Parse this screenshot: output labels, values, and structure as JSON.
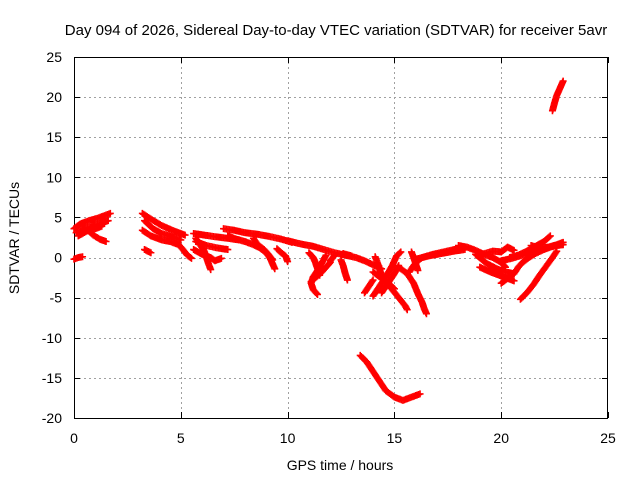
{
  "chart_data": {
    "type": "scatter",
    "title": "Day 094 of 2026, Sidereal Day-to-day VTEC variation (SDTVAR) for receiver 5avr",
    "xlabel": "GPS time / hours",
    "ylabel": "SDTVAR / TECUs",
    "xlim": [
      0,
      25
    ],
    "ylim": [
      -20,
      25
    ],
    "x_ticks": [
      0,
      5,
      10,
      15,
      20,
      25
    ],
    "y_ticks": [
      -20,
      -15,
      -10,
      -5,
      0,
      5,
      10,
      15,
      20,
      25
    ],
    "grid": true,
    "marker": "+",
    "color": "#ff0000",
    "series": [
      {
        "name": "t1",
        "points": [
          [
            0.0,
            3.6
          ],
          [
            0.3,
            4.2
          ],
          [
            0.7,
            4.6
          ],
          [
            1.1,
            4.9
          ],
          [
            1.5,
            5.3
          ],
          [
            1.7,
            5.5
          ]
        ]
      },
      {
        "name": "t2",
        "points": [
          [
            0.1,
            3.1
          ],
          [
            0.5,
            3.6
          ],
          [
            0.9,
            3.9
          ],
          [
            1.3,
            4.3
          ],
          [
            1.6,
            4.6
          ]
        ]
      },
      {
        "name": "t3",
        "points": [
          [
            0.2,
            2.7
          ],
          [
            0.6,
            3.3
          ],
          [
            1.0,
            3.6
          ],
          [
            1.3,
            3.9
          ]
        ]
      },
      {
        "name": "t4",
        "points": [
          [
            0.7,
            3.3
          ],
          [
            0.9,
            2.8
          ],
          [
            1.2,
            2.3
          ],
          [
            1.5,
            2.0
          ]
        ]
      },
      {
        "name": "t5",
        "points": [
          [
            0.0,
            -0.2
          ],
          [
            0.2,
            0.0
          ],
          [
            0.4,
            0.1
          ]
        ]
      },
      {
        "name": "t6",
        "points": [
          [
            3.2,
            5.5
          ],
          [
            3.6,
            4.8
          ],
          [
            4.1,
            4.0
          ],
          [
            4.7,
            3.3
          ],
          [
            5.2,
            2.8
          ]
        ]
      },
      {
        "name": "t7",
        "points": [
          [
            3.3,
            4.6
          ],
          [
            3.7,
            3.6
          ],
          [
            4.1,
            3.0
          ],
          [
            4.6,
            2.6
          ],
          [
            5.0,
            2.2
          ]
        ]
      },
      {
        "name": "t8",
        "points": [
          [
            3.2,
            3.4
          ],
          [
            3.6,
            2.7
          ],
          [
            4.1,
            2.2
          ],
          [
            4.5,
            2.0
          ],
          [
            4.9,
            1.6
          ],
          [
            5.1,
            1.0
          ],
          [
            5.3,
            0.3
          ],
          [
            5.5,
            -0.1
          ]
        ]
      },
      {
        "name": "t9",
        "points": [
          [
            3.3,
            1.0
          ],
          [
            3.6,
            0.6
          ]
        ]
      },
      {
        "name": "t10",
        "points": [
          [
            5.6,
            3.0
          ],
          [
            6.1,
            2.8
          ],
          [
            6.6,
            2.6
          ],
          [
            7.2,
            2.4
          ],
          [
            7.7,
            2.2
          ]
        ]
      },
      {
        "name": "t11",
        "points": [
          [
            5.7,
            2.0
          ],
          [
            6.2,
            1.5
          ],
          [
            6.7,
            1.2
          ],
          [
            7.2,
            1.0
          ]
        ]
      },
      {
        "name": "t12",
        "points": [
          [
            5.6,
            1.0
          ],
          [
            6.0,
            0.4
          ],
          [
            6.4,
            0.0
          ],
          [
            6.6,
            -0.4
          ],
          [
            6.9,
            -0.1
          ]
        ]
      },
      {
        "name": "t13",
        "points": [
          [
            5.7,
            2.4
          ],
          [
            5.9,
            1.6
          ],
          [
            6.1,
            0.8
          ],
          [
            6.2,
            0.0
          ],
          [
            6.3,
            -0.8
          ],
          [
            6.4,
            -1.5
          ]
        ]
      },
      {
        "name": "t14",
        "points": [
          [
            7.0,
            3.6
          ],
          [
            7.5,
            3.4
          ],
          [
            8.0,
            3.1
          ],
          [
            8.6,
            2.9
          ],
          [
            9.2,
            2.6
          ],
          [
            9.7,
            2.3
          ],
          [
            10.2,
            1.9
          ]
        ]
      },
      {
        "name": "t15",
        "points": [
          [
            7.2,
            2.7
          ],
          [
            7.6,
            2.3
          ],
          [
            8.0,
            2.0
          ],
          [
            8.4,
            1.6
          ],
          [
            8.7,
            1.2
          ],
          [
            9.0,
            0.6
          ],
          [
            9.2,
            -0.2
          ],
          [
            9.3,
            -0.8
          ],
          [
            9.4,
            -1.4
          ]
        ]
      },
      {
        "name": "t16",
        "points": [
          [
            8.4,
            2.4
          ],
          [
            8.6,
            1.6
          ],
          [
            8.9,
            1.0
          ],
          [
            9.1,
            0.4
          ],
          [
            9.3,
            -0.3
          ]
        ]
      },
      {
        "name": "t17",
        "points": [
          [
            9.5,
            1.1
          ],
          [
            9.7,
            0.6
          ],
          [
            9.9,
            0.2
          ],
          [
            10.0,
            -0.5
          ]
        ]
      },
      {
        "name": "t18",
        "points": [
          [
            10.0,
            2.1
          ],
          [
            10.6,
            1.7
          ],
          [
            11.2,
            1.4
          ],
          [
            11.7,
            1.0
          ],
          [
            12.2,
            0.6
          ],
          [
            12.7,
            0.3
          ],
          [
            13.2,
            0.0
          ],
          [
            13.6,
            -0.4
          ],
          [
            14.0,
            -0.9
          ],
          [
            14.4,
            -1.4
          ]
        ]
      },
      {
        "name": "t19",
        "points": [
          [
            11.0,
            0.6
          ],
          [
            11.2,
            0.0
          ],
          [
            11.3,
            -0.6
          ],
          [
            11.4,
            -1.4
          ],
          [
            11.5,
            -2.2
          ]
        ]
      },
      {
        "name": "t20",
        "points": [
          [
            11.1,
            -3.0
          ],
          [
            11.4,
            -2.3
          ],
          [
            11.6,
            -1.8
          ],
          [
            11.8,
            -1.2
          ],
          [
            12.0,
            -0.6
          ]
        ]
      },
      {
        "name": "t21",
        "points": [
          [
            11.8,
            0.3
          ],
          [
            11.5,
            -1.2
          ],
          [
            11.2,
            -2.4
          ],
          [
            11.1,
            -3.2
          ],
          [
            11.2,
            -4.0
          ],
          [
            11.4,
            -4.6
          ]
        ]
      },
      {
        "name": "t22",
        "points": [
          [
            12.2,
            0.3
          ],
          [
            12.0,
            -0.4
          ]
        ]
      },
      {
        "name": "t23",
        "points": [
          [
            12.5,
            -0.3
          ],
          [
            12.6,
            -1.0
          ],
          [
            12.7,
            -2.0
          ],
          [
            12.8,
            -2.8
          ]
        ]
      },
      {
        "name": "t24",
        "points": [
          [
            12.6,
            0.5
          ],
          [
            13.0,
            0.2
          ]
        ]
      },
      {
        "name": "t25",
        "points": [
          [
            14.1,
            0.1
          ],
          [
            14.2,
            -0.6
          ],
          [
            14.3,
            -1.4
          ],
          [
            14.4,
            -2.2
          ],
          [
            14.6,
            -3.0
          ],
          [
            14.9,
            -4.0
          ],
          [
            15.2,
            -5.0
          ],
          [
            15.5,
            -6.0
          ],
          [
            15.6,
            -6.5
          ]
        ]
      },
      {
        "name": "t26",
        "points": [
          [
            14.0,
            -1.8
          ],
          [
            14.4,
            -2.6
          ],
          [
            14.8,
            -3.4
          ],
          [
            15.0,
            -3.9
          ]
        ]
      },
      {
        "name": "t27",
        "points": [
          [
            14.0,
            -4.8
          ],
          [
            14.3,
            -3.6
          ],
          [
            14.6,
            -2.4
          ],
          [
            14.9,
            -1.0
          ],
          [
            15.1,
            0.2
          ],
          [
            15.3,
            0.7
          ]
        ]
      },
      {
        "name": "t28",
        "points": [
          [
            13.6,
            -4.4
          ],
          [
            13.8,
            -3.6
          ],
          [
            14.0,
            -2.8
          ]
        ]
      },
      {
        "name": "t29",
        "points": [
          [
            14.4,
            -4.4
          ],
          [
            14.7,
            -3.2
          ],
          [
            15.0,
            -2.0
          ],
          [
            15.2,
            -1.0
          ]
        ]
      },
      {
        "name": "t30",
        "points": [
          [
            15.2,
            -1.2
          ],
          [
            15.6,
            -2.0
          ],
          [
            15.9,
            -3.2
          ],
          [
            16.1,
            -4.5
          ],
          [
            16.3,
            -5.6
          ],
          [
            16.4,
            -6.4
          ],
          [
            16.5,
            -7.0
          ]
        ]
      },
      {
        "name": "t31",
        "points": [
          [
            15.8,
            0.7
          ],
          [
            15.9,
            0.0
          ],
          [
            16.0,
            -0.8
          ],
          [
            16.1,
            -1.6
          ]
        ]
      },
      {
        "name": "t32",
        "points": [
          [
            15.7,
            -1.8
          ],
          [
            15.9,
            -1.0
          ],
          [
            16.1,
            -0.4
          ],
          [
            16.3,
            0.0
          ],
          [
            16.8,
            0.4
          ],
          [
            17.3,
            0.7
          ],
          [
            17.8,
            1.0
          ],
          [
            18.3,
            1.2
          ]
        ]
      },
      {
        "name": "t33",
        "points": [
          [
            16.0,
            -0.2
          ],
          [
            16.6,
            0.2
          ],
          [
            17.2,
            0.5
          ],
          [
            17.8,
            0.8
          ],
          [
            18.3,
            1.0
          ]
        ]
      },
      {
        "name": "t34",
        "points": [
          [
            13.4,
            -12.2
          ],
          [
            13.7,
            -13.0
          ],
          [
            14.0,
            -14.2
          ],
          [
            14.3,
            -15.4
          ],
          [
            14.6,
            -16.6
          ],
          [
            15.0,
            -17.4
          ],
          [
            15.4,
            -17.8
          ],
          [
            15.8,
            -17.4
          ],
          [
            16.2,
            -17.0
          ]
        ]
      },
      {
        "name": "t35",
        "points": [
          [
            18.0,
            1.5
          ],
          [
            18.4,
            1.3
          ],
          [
            18.8,
            0.9
          ],
          [
            19.2,
            0.4
          ],
          [
            19.6,
            0.0
          ],
          [
            20.0,
            -0.6
          ],
          [
            20.2,
            -1.2
          ]
        ]
      },
      {
        "name": "t36",
        "points": [
          [
            18.8,
            0.4
          ],
          [
            19.3,
            -0.7
          ],
          [
            19.8,
            -1.4
          ],
          [
            20.2,
            -1.8
          ],
          [
            20.6,
            -2.0
          ]
        ]
      },
      {
        "name": "t37",
        "points": [
          [
            19.0,
            -1.2
          ],
          [
            19.5,
            -1.8
          ],
          [
            20.0,
            -2.3
          ],
          [
            20.3,
            -2.6
          ],
          [
            20.6,
            -2.9
          ]
        ]
      },
      {
        "name": "t38",
        "points": [
          [
            19.1,
            0.4
          ],
          [
            19.6,
            0.8
          ],
          [
            20.0,
            0.7
          ],
          [
            20.3,
            1.3
          ],
          [
            20.6,
            0.9
          ]
        ]
      },
      {
        "name": "t39",
        "points": [
          [
            20.0,
            -3.2
          ],
          [
            20.3,
            -2.6
          ],
          [
            20.6,
            -2.0
          ],
          [
            20.8,
            -1.2
          ],
          [
            21.0,
            -0.6
          ],
          [
            21.3,
            0.0
          ],
          [
            21.6,
            0.5
          ],
          [
            22.0,
            1.0
          ]
        ]
      },
      {
        "name": "t40",
        "points": [
          [
            20.0,
            -0.4
          ],
          [
            20.5,
            -0.1
          ],
          [
            21.0,
            0.3
          ],
          [
            21.4,
            0.5
          ],
          [
            21.7,
            0.8
          ]
        ]
      },
      {
        "name": "t41",
        "points": [
          [
            20.4,
            0.0
          ],
          [
            20.8,
            0.3
          ],
          [
            21.2,
            0.8
          ],
          [
            21.6,
            1.4
          ],
          [
            22.0,
            2.0
          ],
          [
            22.3,
            2.7
          ]
        ]
      },
      {
        "name": "t42",
        "points": [
          [
            20.9,
            -5.2
          ],
          [
            21.2,
            -4.4
          ],
          [
            21.5,
            -3.4
          ],
          [
            21.8,
            -2.2
          ],
          [
            22.1,
            -1.1
          ],
          [
            22.4,
            0.0
          ],
          [
            22.6,
            0.8
          ]
        ]
      },
      {
        "name": "t43",
        "points": [
          [
            21.4,
            1.5
          ],
          [
            21.8,
            1.2
          ],
          [
            22.2,
            1.3
          ],
          [
            22.6,
            1.6
          ],
          [
            22.9,
            1.9
          ]
        ]
      },
      {
        "name": "t44",
        "points": [
          [
            22.0,
            1.0
          ],
          [
            22.3,
            1.3
          ],
          [
            22.6,
            1.5
          ],
          [
            22.9,
            1.6
          ]
        ]
      },
      {
        "name": "t45",
        "points": [
          [
            22.4,
            18.3
          ],
          [
            22.5,
            19.3
          ],
          [
            22.6,
            20.2
          ],
          [
            22.7,
            20.8
          ],
          [
            22.8,
            21.4
          ],
          [
            22.9,
            22.0
          ]
        ]
      }
    ]
  }
}
